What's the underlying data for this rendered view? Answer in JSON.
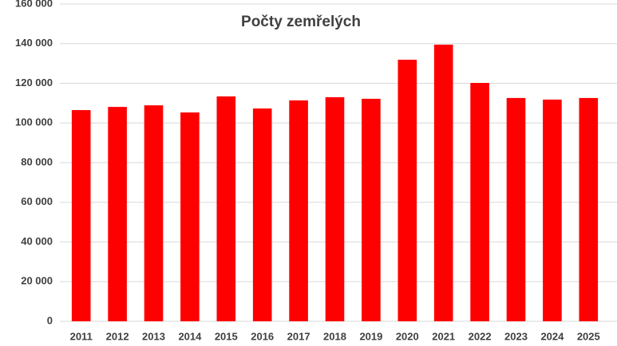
{
  "chart_data": {
    "type": "bar",
    "title": "Počty zemřelých",
    "categories": [
      "2011",
      "2012",
      "2013",
      "2014",
      "2015",
      "2016",
      "2017",
      "2018",
      "2019",
      "2020",
      "2021",
      "2022",
      "2023",
      "2024",
      "2025"
    ],
    "values": [
      106500,
      108100,
      108900,
      105300,
      113400,
      107300,
      111400,
      113000,
      112200,
      131900,
      139500,
      120200,
      112600,
      111800,
      112600
    ],
    "color": "#ff0000",
    "ylim": [
      0,
      160000
    ],
    "yticks": [
      0,
      {
        "value": 20000,
        "label": "20 000"
      },
      {
        "value": 40000,
        "label": "40 000"
      },
      {
        "value": 60000,
        "label": "60 000"
      },
      {
        "value": 80000,
        "label": "80 000"
      },
      {
        "value": 100000,
        "label": "100 000"
      },
      {
        "value": 120000,
        "label": "120 000"
      },
      {
        "value": 140000,
        "label": "140 000"
      },
      {
        "value": 160000,
        "label": "160 000"
      }
    ],
    "grid": true
  }
}
